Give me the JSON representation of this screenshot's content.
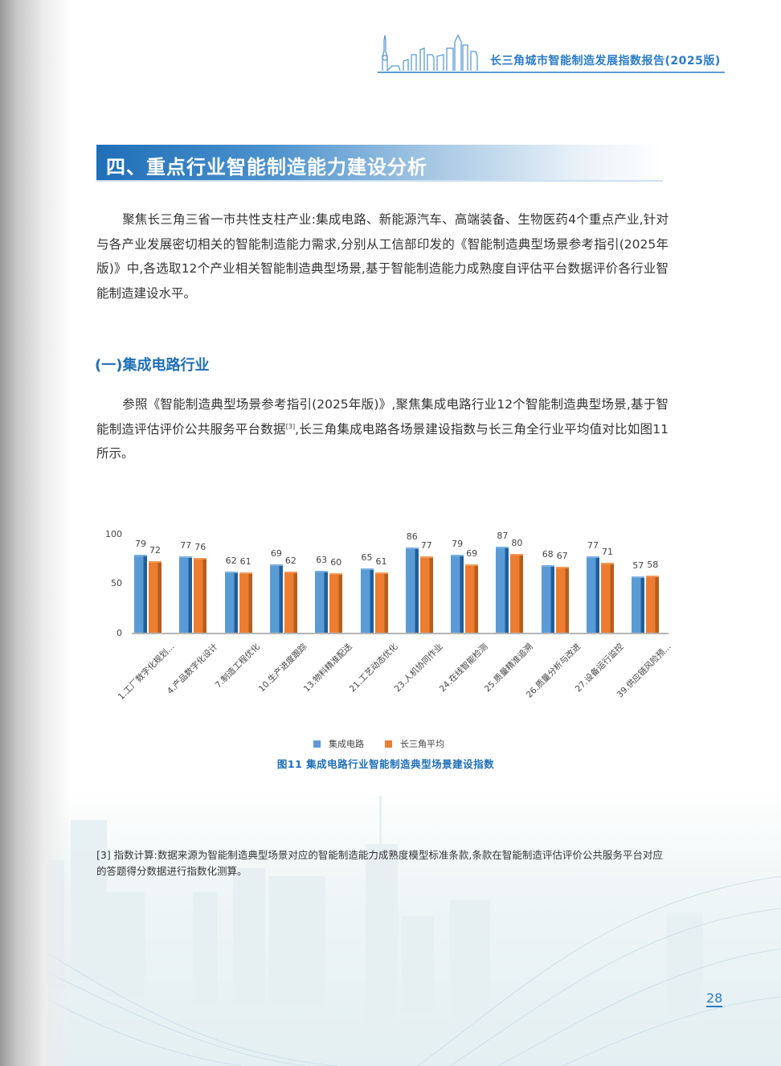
{
  "header": {
    "title": "长三角城市智能制造发展指数报告(2025版)"
  },
  "section": {
    "title": "四、重点行业智能制造能力建设分析",
    "intro": "聚焦长三角三省一市共性支柱产业:集成电路、新能源汽车、高端装备、生物医药4个重点产业,针对与各产业发展密切相关的智能制造能力需求,分别从工信部印发的《智能制造典型场景参考指引(2025年版)》中,各选取12个产业相关智能制造典型场景,基于智能制造能力成熟度自评估平台数据评价各行业智能制造建设水平。"
  },
  "subsection": {
    "title": "(一)集成电路行业",
    "para_before_ref": "参照《智能制造典型场景参考指引(2025年版)》,聚焦集成电路行业12个智能制造典型场景,基于智能制造评估评价公共服务平台数据",
    "ref_mark": "[3]",
    "para_after_ref": ",长三角集成电路各场景建设指数与长三角全行业平均值对比如图11所示。"
  },
  "chart_data": {
    "type": "bar",
    "title": "图11 集成电路行业智能制造典型场景建设指数",
    "xlabel": "",
    "ylabel": "",
    "ylim": [
      0,
      100
    ],
    "yticks": [
      0,
      50,
      100
    ],
    "grid": false,
    "legend_position": "bottom",
    "categories": [
      "1.工厂数字化规划...",
      "4.产品数字化设计",
      "7.制造工程优化",
      "10.生产进度跟踪",
      "13.物料精准配送",
      "21.工艺动态优化",
      "23.人机协同作业",
      "24.在线智能检测",
      "25.质量精准追溯",
      "26.质量分析与改进",
      "27.设备运行监控",
      "39.供应链风险预..."
    ],
    "series": [
      {
        "name": "集成电路",
        "color": "#5b9bd5",
        "values": [
          79,
          77,
          62,
          69,
          63,
          65,
          86,
          79,
          87,
          68,
          77,
          57
        ]
      },
      {
        "name": "长三角平均",
        "color": "#ed7d31",
        "values": [
          72,
          76,
          61,
          62,
          60,
          61,
          77,
          69,
          80,
          67,
          71,
          58
        ]
      }
    ]
  },
  "footnote": "[3] 指数计算:数据来源为智能制造典型场景对应的智能制造能力成熟度模型标准条款,条款在智能制造评估评价公共服务平台对应的答题得分数据进行指数化测算。",
  "page_number": "28"
}
